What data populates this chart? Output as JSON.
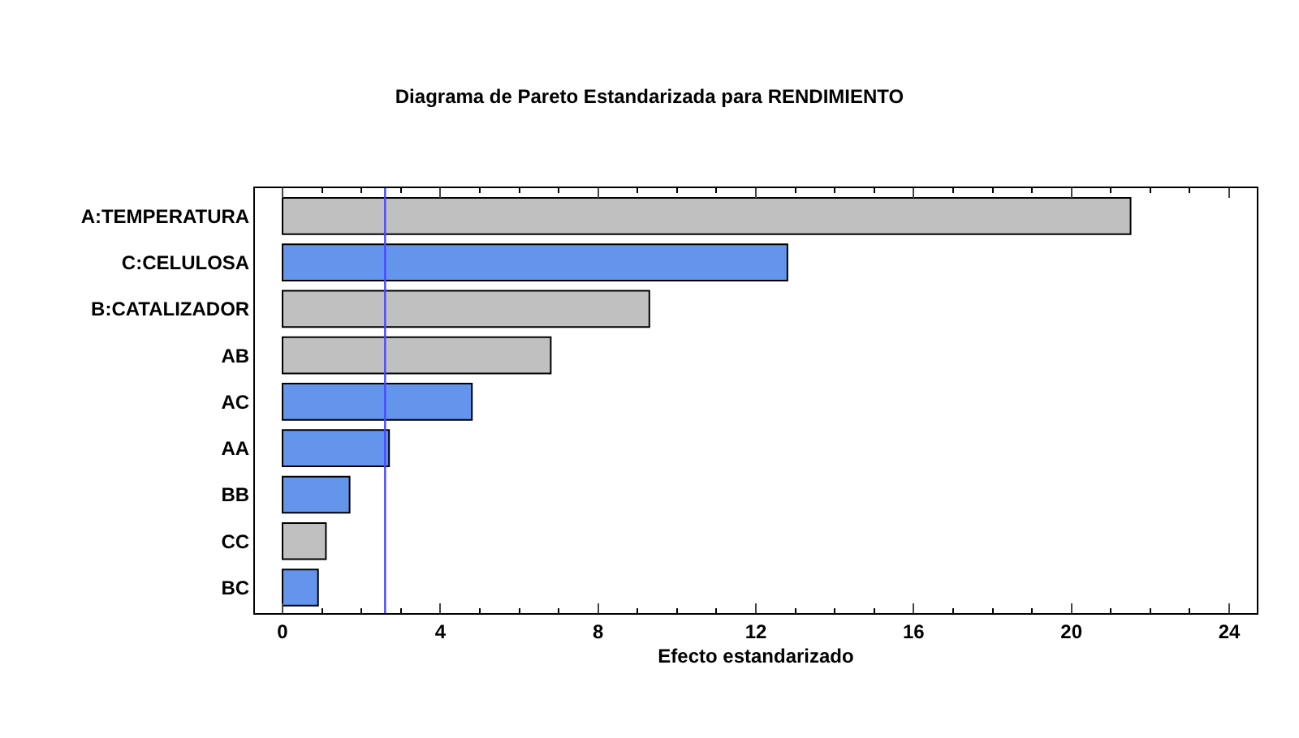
{
  "chart_data": {
    "type": "bar",
    "orientation": "horizontal",
    "title": "Diagrama de Pareto Estandarizada para RENDIMIENTO",
    "xlabel": "Efecto estandarizado",
    "categories": [
      "A:TEMPERATURA",
      "C:CELULOSA",
      "B:CATALIZADOR",
      "AB",
      "AC",
      "AA",
      "BB",
      "CC",
      "BC"
    ],
    "values": [
      21.5,
      12.8,
      9.3,
      6.8,
      4.8,
      2.7,
      1.7,
      1.1,
      0.9
    ],
    "colors": [
      "#c0c0c0",
      "#6495ed",
      "#c0c0c0",
      "#c0c0c0",
      "#6495ed",
      "#6495ed",
      "#6495ed",
      "#c0c0c0",
      "#6495ed"
    ],
    "xlim": [
      -0.7,
      24.7
    ],
    "xticks": [
      0,
      4,
      8,
      12,
      16,
      20,
      24
    ],
    "ref_lines": [
      {
        "axis": "x",
        "value": 2.6,
        "color": "#4a4aff"
      }
    ]
  }
}
